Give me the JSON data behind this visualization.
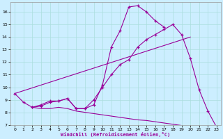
{
  "xlabel": "Windchill (Refroidissement éolien,°C)",
  "bg_color": "#cceeff",
  "grid_color": "#aadddd",
  "line_color": "#990099",
  "xlim": [
    -0.5,
    23.5
  ],
  "ylim": [
    7,
    16.8
  ],
  "yticks": [
    7,
    8,
    9,
    10,
    11,
    12,
    13,
    14,
    15,
    16
  ],
  "xticks": [
    0,
    1,
    2,
    3,
    4,
    5,
    6,
    7,
    8,
    9,
    10,
    11,
    12,
    13,
    14,
    15,
    16,
    17,
    18,
    19,
    20,
    21,
    22,
    23
  ],
  "series": [
    {
      "x": [
        0,
        1,
        2,
        3,
        4,
        5,
        6,
        7,
        8,
        9,
        10,
        11,
        12,
        13,
        14,
        15,
        16,
        17
      ],
      "y": [
        9.5,
        8.8,
        8.4,
        8.6,
        8.9,
        8.9,
        9.1,
        8.3,
        8.3,
        8.6,
        10.2,
        13.2,
        14.5,
        16.4,
        16.5,
        16.0,
        15.3,
        14.8
      ],
      "markers": true
    },
    {
      "x": [
        0,
        20
      ],
      "y": [
        9.5,
        14.0
      ],
      "markers": false
    },
    {
      "x": [
        2,
        3,
        4,
        5,
        6,
        7,
        8,
        9,
        10,
        11,
        12,
        13,
        14,
        15,
        16,
        17,
        18,
        19,
        20,
        21,
        22,
        23
      ],
      "y": [
        8.4,
        8.5,
        8.8,
        8.9,
        9.1,
        8.3,
        8.3,
        9.0,
        10.0,
        11.0,
        11.8,
        12.2,
        13.2,
        13.8,
        14.2,
        14.6,
        15.0,
        14.2,
        12.3,
        9.8,
        8.1,
        6.8
      ],
      "markers": true
    },
    {
      "x": [
        2,
        3,
        4,
        5,
        6,
        7,
        8,
        9,
        10,
        11,
        12,
        13,
        14,
        15,
        16,
        17,
        18,
        19,
        20,
        21,
        22,
        23
      ],
      "y": [
        8.4,
        8.3,
        8.3,
        8.4,
        8.3,
        8.1,
        8.0,
        7.9,
        7.8,
        7.7,
        7.6,
        7.5,
        7.4,
        7.35,
        7.25,
        7.15,
        7.05,
        6.95,
        6.88,
        6.82,
        6.76,
        6.7
      ],
      "markers": false
    }
  ]
}
